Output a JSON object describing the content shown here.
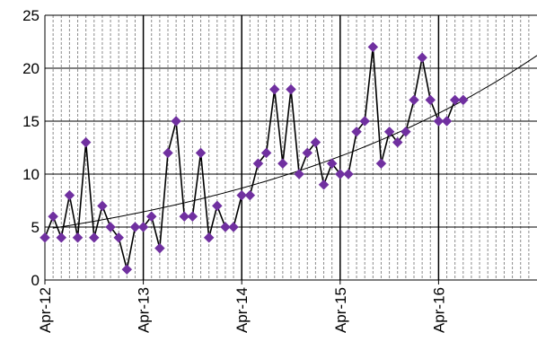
{
  "chart_data": {
    "type": "line",
    "title": "",
    "xlabel": "",
    "ylabel": "",
    "ylim": [
      0,
      25
    ],
    "yticks": [
      0,
      5,
      10,
      15,
      20,
      25
    ],
    "xlim_month_index": [
      0,
      60
    ],
    "xtick_labels": [
      "Apr-12",
      "Apr-13",
      "Apr-14",
      "Apr-15",
      "Apr-16"
    ],
    "xtick_month_index": [
      0,
      12,
      24,
      36,
      48
    ],
    "grid": {
      "major": true,
      "minor_vertical": "dashed"
    },
    "legend": "none",
    "series": [
      {
        "marker": "diamond",
        "marker_color": "#7030A0",
        "line_color": "#000000",
        "x": [
          "Apr-12",
          "May-12",
          "Jun-12",
          "Jul-12",
          "Aug-12",
          "Sep-12",
          "Oct-12",
          "Nov-12",
          "Dec-12",
          "Jan-13",
          "Feb-13",
          "Mar-13",
          "Apr-13",
          "May-13",
          "Jun-13",
          "Jul-13",
          "Aug-13",
          "Sep-13",
          "Oct-13",
          "Nov-13",
          "Dec-13",
          "Jan-14",
          "Feb-14",
          "Mar-14",
          "Apr-14",
          "May-14",
          "Jun-14",
          "Jul-14",
          "Aug-14",
          "Sep-14",
          "Oct-14",
          "Nov-14",
          "Dec-14",
          "Jan-15",
          "Feb-15",
          "Mar-15",
          "Apr-15",
          "May-15",
          "Jun-15",
          "Jul-15",
          "Aug-15",
          "Sep-15",
          "Oct-15",
          "Nov-15",
          "Dec-15",
          "Jan-16",
          "Feb-16",
          "Mar-16",
          "Apr-16",
          "May-16",
          "Jun-16",
          "Jul-16"
        ],
        "values": [
          4,
          6,
          4,
          8,
          4,
          13,
          4,
          7,
          5,
          4,
          1,
          5,
          5,
          6,
          3,
          12,
          15,
          6,
          6,
          12,
          4,
          7,
          5,
          5,
          8,
          8,
          11,
          12,
          18,
          11,
          18,
          10,
          12,
          13,
          9,
          11,
          10,
          10,
          14,
          15,
          22,
          11,
          14,
          13,
          14,
          17,
          21,
          17,
          15,
          15,
          17,
          17
        ]
      },
      {
        "type": "trendline",
        "kind": "exponential",
        "line_color": "#000000",
        "x_month_index": [
          1,
          60
        ],
        "values": [
          4.9,
          21.2
        ]
      }
    ]
  }
}
